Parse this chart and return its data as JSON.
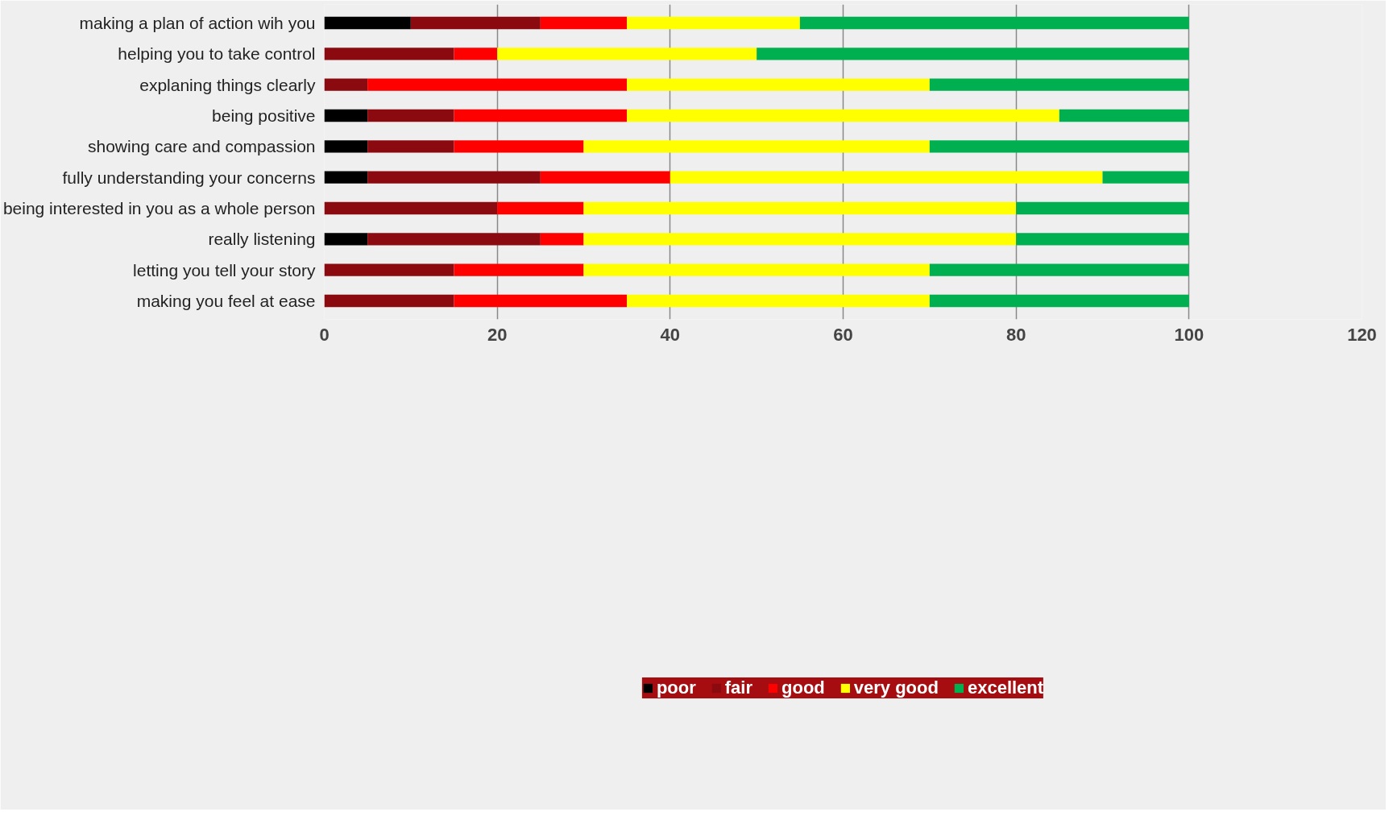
{
  "chart_data": {
    "type": "bar",
    "orientation": "horizontal",
    "stacked": true,
    "categories": [
      "making a plan of action wih you",
      "helping you to take control",
      "explaning things clearly",
      "being positive",
      "showing care and compassion",
      "fully understanding your concerns",
      "being interested in you as a whole person",
      "really listening",
      "letting you tell your story",
      "making you feel at ease"
    ],
    "series": [
      {
        "name": "poor",
        "color": "#000000",
        "values": [
          10,
          0,
          0,
          5,
          5,
          5,
          0,
          5,
          0,
          0
        ]
      },
      {
        "name": "fair",
        "color": "#8b0a0f",
        "values": [
          15,
          15,
          5,
          10,
          10,
          20,
          20,
          20,
          15,
          15
        ]
      },
      {
        "name": "good",
        "color": "#ff0000",
        "values": [
          10,
          5,
          30,
          20,
          15,
          15,
          10,
          5,
          15,
          20
        ]
      },
      {
        "name": "very good",
        "color": "#ffff00",
        "values": [
          20,
          30,
          35,
          50,
          40,
          50,
          50,
          50,
          40,
          35
        ]
      },
      {
        "name": "excellent",
        "color": "#00b050",
        "values": [
          45,
          50,
          30,
          15,
          30,
          10,
          20,
          20,
          30,
          30
        ]
      }
    ],
    "xlim": [
      0,
      120
    ],
    "xticks": [
      0,
      20,
      40,
      60,
      80,
      100,
      120
    ],
    "grid": "x",
    "legend": "bottom"
  }
}
